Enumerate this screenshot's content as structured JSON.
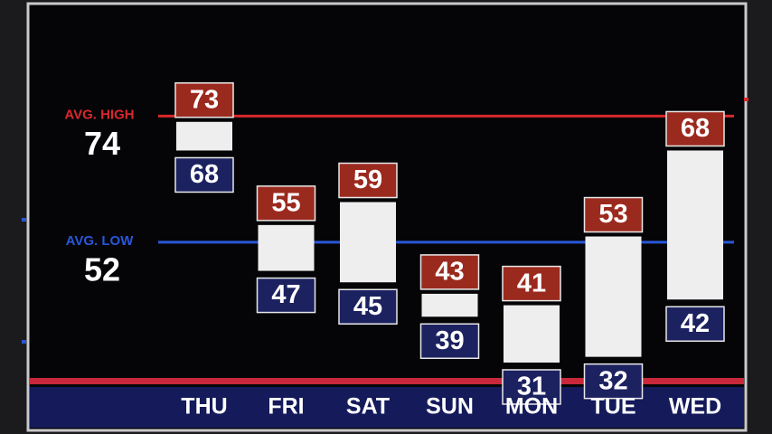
{
  "chart_data": {
    "type": "floating-bar",
    "categories": [
      "THU",
      "FRI",
      "SAT",
      "SUN",
      "MON",
      "TUE",
      "WED"
    ],
    "series": [
      {
        "color": "#9b2a1e",
        "values": [
          73,
          55,
          59,
          43,
          41,
          53,
          68
        ]
      },
      {
        "color": "#1c2260",
        "values": [
          68,
          47,
          45,
          39,
          31,
          32,
          42
        ]
      }
    ],
    "bar_color": "#eeeeee",
    "ylim": [
      28,
      93
    ],
    "reference_lines": [
      {
        "label": "AVG. HIGH",
        "value": 74,
        "color": "#d8282c"
      },
      {
        "label": "AVG. LOW",
        "value": 52,
        "color": "#2a56d8"
      }
    ]
  }
}
